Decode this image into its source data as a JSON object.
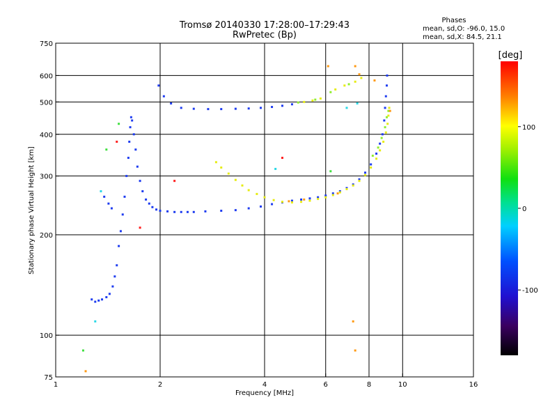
{
  "header": {
    "title": "Tromsø 20140330 17:28:00–17:29:43",
    "subtitle": "RwPretec (Bp)",
    "phases_title": "Phases",
    "phases_o": "mean, sd,O: -96.0, 15.0",
    "phases_x": "mean, sd,X:  84.5, 21.1"
  },
  "chart_data": {
    "type": "scatter",
    "xlabel": "Frequency [MHz]",
    "ylabel": "Stationary phase Virtual Height [km]",
    "x_scale": "log",
    "y_scale": "log",
    "xlim": [
      1,
      16
    ],
    "ylim": [
      75,
      750
    ],
    "x_ticks": [
      1,
      2,
      4,
      6,
      8,
      10,
      16
    ],
    "y_ticks": [
      75,
      100,
      200,
      300,
      400,
      500,
      600,
      750
    ],
    "x_tick_labels": [
      "1",
      "2",
      "4",
      "6",
      "8",
      "10",
      "16"
    ],
    "y_tick_labels": [
      "75",
      "100",
      "200",
      "300",
      "400",
      "500",
      "600",
      "750"
    ],
    "x_grid": [
      2,
      4,
      6,
      8,
      10
    ],
    "y_grid": [
      100,
      200,
      300,
      400,
      500,
      600
    ],
    "grid": true,
    "colorbar": {
      "label": "[deg]",
      "range": [
        -180,
        180
      ],
      "ticks": [
        100,
        0,
        -100
      ],
      "tick_labels": [
        "100",
        "0",
        "-100"
      ]
    },
    "series": [
      {
        "phase": -100,
        "color": "#1e3cf0",
        "points": [
          [
            1.27,
            128
          ],
          [
            1.3,
            126
          ],
          [
            1.33,
            127
          ],
          [
            1.36,
            128
          ],
          [
            1.4,
            130
          ],
          [
            1.43,
            133
          ],
          [
            1.46,
            140
          ],
          [
            1.48,
            150
          ],
          [
            1.5,
            162
          ],
          [
            1.52,
            185
          ],
          [
            1.54,
            205
          ],
          [
            1.56,
            230
          ],
          [
            1.58,
            260
          ],
          [
            1.6,
            300
          ],
          [
            1.62,
            340
          ],
          [
            1.63,
            380
          ],
          [
            1.64,
            420
          ],
          [
            1.65,
            450
          ],
          [
            1.66,
            440
          ],
          [
            1.68,
            400
          ],
          [
            1.7,
            360
          ],
          [
            1.72,
            320
          ],
          [
            1.75,
            290
          ],
          [
            1.78,
            270
          ],
          [
            1.82,
            255
          ],
          [
            1.86,
            248
          ],
          [
            1.9,
            242
          ],
          [
            1.95,
            238
          ],
          [
            2.0,
            236
          ],
          [
            2.1,
            235
          ],
          [
            2.2,
            234
          ],
          [
            2.3,
            234
          ],
          [
            2.4,
            234
          ],
          [
            2.5,
            234
          ],
          [
            2.7,
            235
          ],
          [
            3.0,
            236
          ],
          [
            3.3,
            237
          ],
          [
            3.6,
            240
          ],
          [
            3.9,
            243
          ],
          [
            4.2,
            247
          ],
          [
            4.5,
            250
          ],
          [
            4.8,
            253
          ],
          [
            5.1,
            255
          ],
          [
            5.4,
            257
          ],
          [
            5.7,
            259
          ],
          [
            6.0,
            262
          ],
          [
            6.3,
            266
          ],
          [
            6.6,
            270
          ],
          [
            6.9,
            276
          ],
          [
            7.2,
            283
          ],
          [
            7.5,
            293
          ],
          [
            7.8,
            307
          ],
          [
            8.1,
            325
          ],
          [
            8.4,
            350
          ],
          [
            8.6,
            375
          ],
          [
            8.75,
            400
          ],
          [
            8.85,
            440
          ],
          [
            8.9,
            480
          ],
          [
            8.95,
            520
          ],
          [
            9.0,
            560
          ],
          [
            9.02,
            600
          ],
          [
            1.98,
            560
          ],
          [
            2.05,
            520
          ],
          [
            2.15,
            495
          ],
          [
            2.3,
            480
          ],
          [
            2.5,
            477
          ],
          [
            2.75,
            476
          ],
          [
            3.0,
            476
          ],
          [
            3.3,
            477
          ],
          [
            3.6,
            478
          ],
          [
            3.9,
            480
          ],
          [
            4.2,
            483
          ],
          [
            4.5,
            487
          ],
          [
            4.8,
            492
          ],
          [
            1.45,
            240
          ],
          [
            1.42,
            248
          ],
          [
            1.38,
            260
          ]
        ]
      },
      {
        "phase": 100,
        "color": "#e6ec14",
        "points": [
          [
            2.9,
            330
          ],
          [
            3.0,
            318
          ],
          [
            3.15,
            305
          ],
          [
            3.3,
            292
          ],
          [
            3.45,
            281
          ],
          [
            3.6,
            272
          ],
          [
            3.8,
            265
          ],
          [
            4.0,
            259
          ],
          [
            4.25,
            254
          ],
          [
            4.5,
            251
          ],
          [
            4.8,
            250
          ],
          [
            5.1,
            251
          ],
          [
            5.4,
            253
          ],
          [
            5.7,
            256
          ],
          [
            6.0,
            259
          ],
          [
            6.3,
            263
          ],
          [
            6.6,
            268
          ],
          [
            6.9,
            274
          ],
          [
            7.2,
            281
          ],
          [
            7.5,
            290
          ],
          [
            7.8,
            302
          ],
          [
            8.1,
            318
          ],
          [
            8.4,
            338
          ],
          [
            8.6,
            358
          ],
          [
            8.8,
            380
          ],
          [
            8.95,
            405
          ],
          [
            9.05,
            430
          ],
          [
            9.1,
            455
          ],
          [
            9.15,
            480
          ],
          [
            5.2,
            500
          ],
          [
            5.5,
            505
          ],
          [
            5.8,
            512
          ],
          [
            6.4,
            545
          ],
          [
            6.8,
            560
          ],
          [
            7.3,
            575
          ],
          [
            7.6,
            590
          ]
        ]
      },
      {
        "phase": 60,
        "color": "#90ee30",
        "points": [
          [
            8.7,
            390
          ],
          [
            8.9,
            420
          ],
          [
            9.0,
            450
          ],
          [
            9.1,
            470
          ],
          [
            5.0,
            498
          ],
          [
            5.6,
            508
          ],
          [
            6.2,
            535
          ],
          [
            7.0,
            565
          ],
          [
            8.2,
            345
          ],
          [
            8.5,
            365
          ]
        ]
      },
      {
        "phase": 150,
        "color": "#ff9a14",
        "points": [
          [
            4.7,
            252
          ],
          [
            5.2,
            255
          ],
          [
            6.5,
            266
          ],
          [
            7.3,
            640
          ],
          [
            7.5,
            605
          ],
          [
            8.3,
            580
          ],
          [
            9.2,
            470
          ],
          [
            1.22,
            78
          ],
          [
            7.3,
            90
          ],
          [
            7.2,
            110
          ],
          [
            6.1,
            640
          ]
        ]
      },
      {
        "phase": 175,
        "color": "#ff1e1e",
        "points": [
          [
            4.5,
            340
          ],
          [
            1.5,
            380
          ],
          [
            2.2,
            290
          ],
          [
            1.75,
            210
          ]
        ]
      },
      {
        "phase": -30,
        "color": "#2ad8e6",
        "points": [
          [
            1.3,
            110
          ],
          [
            4.3,
            315
          ],
          [
            6.9,
            480
          ],
          [
            7.4,
            495
          ],
          [
            1.35,
            270
          ]
        ]
      },
      {
        "phase": 40,
        "color": "#40e040",
        "points": [
          [
            1.2,
            90
          ],
          [
            1.4,
            360
          ],
          [
            1.52,
            430
          ],
          [
            6.2,
            310
          ]
        ]
      }
    ]
  }
}
